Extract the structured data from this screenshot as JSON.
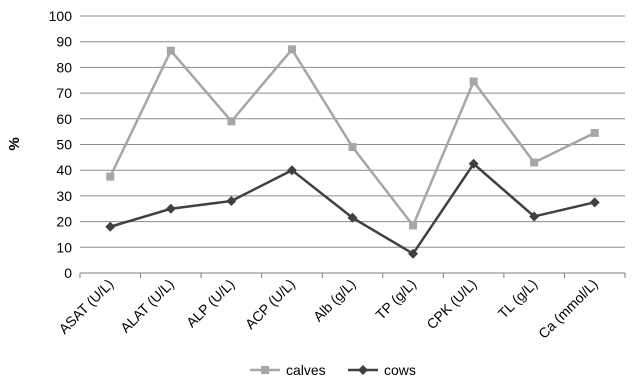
{
  "chart_data": {
    "type": "line",
    "title": "",
    "xlabel": "",
    "ylabel": "%",
    "ylim": [
      0,
      100
    ],
    "yticks": [
      0,
      10,
      20,
      30,
      40,
      50,
      60,
      70,
      80,
      90,
      100
    ],
    "grid": true,
    "legend_position": "bottom",
    "categories": [
      "ASAT (U/L)",
      "ALAT (U/L)",
      "ALP (U/L)",
      "ACP (U/L)",
      "Alb (g/L)",
      "TP (g/L)",
      "CPK (U/L)",
      "TL (g/L)",
      "Ca (mmol/L)"
    ],
    "series": [
      {
        "name": "calves",
        "color": "#a6a6a6",
        "marker": "square",
        "values": [
          37.5,
          86.5,
          59,
          87,
          49,
          18.5,
          74.5,
          43,
          54.5
        ]
      },
      {
        "name": "cows",
        "color": "#404040",
        "marker": "diamond",
        "values": [
          18,
          25,
          28,
          40,
          21.5,
          7.5,
          42.5,
          22,
          27.5
        ]
      }
    ]
  }
}
